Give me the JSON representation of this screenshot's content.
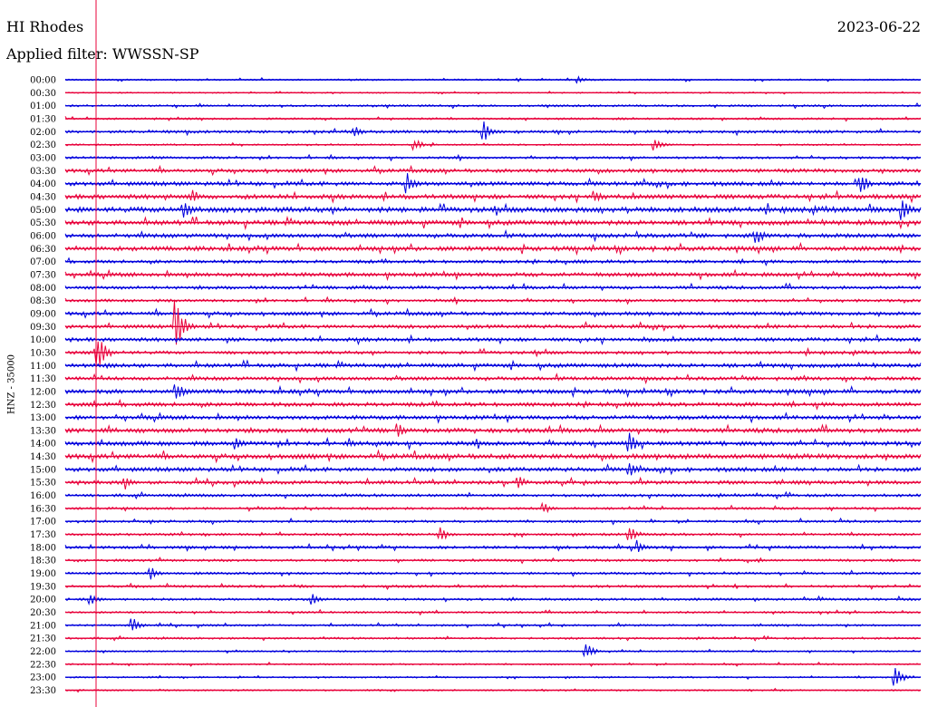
{
  "header": {
    "station": "HI Rhodes",
    "date": "2023-06-22",
    "filter_prefix": "Applied filter:",
    "filter_name": "WWSSN-SP"
  },
  "channel_label": "HNZ - 35000",
  "colors": {
    "trace_a": "#0000dd",
    "trace_b": "#e8003a",
    "marker": "#e8003a",
    "text": "#000000"
  },
  "chart_data": {
    "type": "line",
    "title": "HI Rhodes",
    "ylabel": "HNZ - 35000",
    "xlabel": "",
    "row_labels": [
      "00:00",
      "00:30",
      "01:00",
      "01:30",
      "02:00",
      "02:30",
      "03:00",
      "03:30",
      "04:00",
      "04:30",
      "05:00",
      "05:30",
      "06:00",
      "06:30",
      "07:00",
      "07:30",
      "08:00",
      "08:30",
      "09:00",
      "09:30",
      "10:00",
      "10:30",
      "11:00",
      "11:30",
      "12:00",
      "12:30",
      "13:00",
      "13:30",
      "14:00",
      "14:30",
      "15:00",
      "15:30",
      "16:00",
      "16:30",
      "17:00",
      "17:30",
      "18:00",
      "18:30",
      "19:00",
      "19:30",
      "20:00",
      "20:30",
      "21:00",
      "21:30",
      "22:00",
      "22:30",
      "23:00",
      "23:30"
    ],
    "row_noise": [
      0.4,
      0.3,
      0.5,
      0.5,
      0.7,
      0.4,
      0.6,
      0.9,
      1.0,
      1.1,
      1.3,
      1.2,
      1.0,
      1.1,
      0.8,
      1.0,
      0.8,
      0.7,
      0.9,
      0.9,
      0.9,
      0.8,
      1.0,
      0.9,
      1.0,
      1.0,
      1.0,
      1.1,
      1.1,
      1.2,
      1.0,
      0.9,
      0.7,
      0.6,
      0.6,
      0.6,
      0.7,
      0.6,
      0.6,
      0.6,
      0.6,
      0.5,
      0.5,
      0.5,
      0.4,
      0.4,
      0.4,
      0.4
    ],
    "events": [
      {
        "row": 0,
        "pos": 0.6,
        "amp": 4
      },
      {
        "row": 4,
        "pos": 0.34,
        "amp": 6
      },
      {
        "row": 4,
        "pos": 0.49,
        "amp": 12
      },
      {
        "row": 5,
        "pos": 0.41,
        "amp": 6
      },
      {
        "row": 5,
        "pos": 0.69,
        "amp": 7
      },
      {
        "row": 8,
        "pos": 0.4,
        "amp": 12
      },
      {
        "row": 8,
        "pos": 0.93,
        "amp": 12
      },
      {
        "row": 9,
        "pos": 0.15,
        "amp": 8
      },
      {
        "row": 9,
        "pos": 0.62,
        "amp": 8
      },
      {
        "row": 10,
        "pos": 0.14,
        "amp": 10
      },
      {
        "row": 10,
        "pos": 0.98,
        "amp": 12
      },
      {
        "row": 12,
        "pos": 0.81,
        "amp": 8
      },
      {
        "row": 19,
        "pos": 0.13,
        "amp": 30
      },
      {
        "row": 21,
        "pos": 0.04,
        "amp": 18
      },
      {
        "row": 24,
        "pos": 0.13,
        "amp": 12
      },
      {
        "row": 27,
        "pos": 0.39,
        "amp": 8
      },
      {
        "row": 28,
        "pos": 0.2,
        "amp": 8
      },
      {
        "row": 28,
        "pos": 0.66,
        "amp": 12
      },
      {
        "row": 30,
        "pos": 0.66,
        "amp": 8
      },
      {
        "row": 31,
        "pos": 0.07,
        "amp": 8
      },
      {
        "row": 31,
        "pos": 0.53,
        "amp": 8
      },
      {
        "row": 33,
        "pos": 0.56,
        "amp": 6
      },
      {
        "row": 35,
        "pos": 0.44,
        "amp": 8
      },
      {
        "row": 35,
        "pos": 0.66,
        "amp": 10
      },
      {
        "row": 36,
        "pos": 0.67,
        "amp": 8
      },
      {
        "row": 38,
        "pos": 0.1,
        "amp": 8
      },
      {
        "row": 40,
        "pos": 0.03,
        "amp": 6
      },
      {
        "row": 40,
        "pos": 0.29,
        "amp": 8
      },
      {
        "row": 42,
        "pos": 0.08,
        "amp": 8
      },
      {
        "row": 44,
        "pos": 0.61,
        "amp": 8
      },
      {
        "row": 46,
        "pos": 0.97,
        "amp": 12
      }
    ],
    "marker_fraction": 0.0,
    "grid": false,
    "legend": "none"
  }
}
